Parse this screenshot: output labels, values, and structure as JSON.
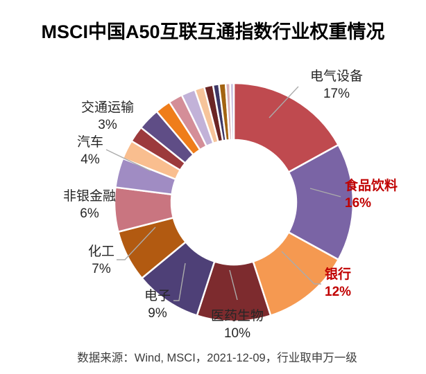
{
  "title": "MSCI中国A50互联互通指数行业权重情况",
  "footer": "数据来源：Wind, MSCI，2021-12-09，行业取申万一级",
  "colors": {
    "emphasis_label": "#C00000",
    "default_label": "#262626",
    "leader_line": "#ABABAB",
    "background": "#FFFFFF"
  },
  "chart_data": {
    "type": "pie",
    "variant": "donut",
    "title": "MSCI中国A50互联互通指数行业权重情况",
    "unit": "%",
    "start_angle_deg": 0,
    "direction": "clockwise",
    "legend": "none",
    "series": [
      {
        "name": "电气设备",
        "value": 17,
        "pct_label": "17%",
        "color": "#BF4A4F",
        "label_color": "#262626",
        "emphasis": false
      },
      {
        "name": "食品饮料",
        "value": 16,
        "pct_label": "16%",
        "color": "#7A64A5",
        "label_color": "#C00000",
        "emphasis": true
      },
      {
        "name": "银行",
        "value": 12,
        "pct_label": "12%",
        "color": "#F59951",
        "label_color": "#C00000",
        "emphasis": true
      },
      {
        "name": "医药生物",
        "value": 10,
        "pct_label": "10%",
        "color": "#7D2B2E",
        "label_color": "#262626",
        "emphasis": false
      },
      {
        "name": "电子",
        "value": 9,
        "pct_label": "9%",
        "color": "#4E4077",
        "label_color": "#262626",
        "emphasis": false
      },
      {
        "name": "化工",
        "value": 7,
        "pct_label": "7%",
        "color": "#B25A11",
        "label_color": "#262626",
        "emphasis": false
      },
      {
        "name": "非银金融",
        "value": 6,
        "pct_label": "6%",
        "color": "#C97580",
        "label_color": "#262626",
        "emphasis": false
      },
      {
        "name": "汽车",
        "value": 4,
        "pct_label": "4%",
        "color": "#A08CC3",
        "label_color": "#262626",
        "emphasis": false
      },
      {
        "name": "",
        "value": 2.6,
        "pct_label": "",
        "color": "#F9BE8F",
        "label_color": null,
        "emphasis": false
      },
      {
        "name": "",
        "value": 2.2,
        "pct_label": "",
        "color": "#9C3A3C",
        "label_color": null,
        "emphasis": false
      },
      {
        "name": "交通运输",
        "value": 3,
        "pct_label": "3%",
        "color": "#5F4D86",
        "label_color": "#262626",
        "emphasis": false
      },
      {
        "name": "",
        "value": 2.1,
        "pct_label": "",
        "color": "#EF7D1A",
        "label_color": null,
        "emphasis": false
      },
      {
        "name": "",
        "value": 1.9,
        "pct_label": "",
        "color": "#D48E98",
        "label_color": null,
        "emphasis": false
      },
      {
        "name": "",
        "value": 1.9,
        "pct_label": "",
        "color": "#C2B2D8",
        "label_color": null,
        "emphasis": false
      },
      {
        "name": "",
        "value": 1.3,
        "pct_label": "",
        "color": "#F6C49A",
        "label_color": null,
        "emphasis": false
      },
      {
        "name": "",
        "value": 1.2,
        "pct_label": "",
        "color": "#6B2524",
        "label_color": null,
        "emphasis": false
      },
      {
        "name": "",
        "value": 0.8,
        "pct_label": "",
        "color": "#3D3766",
        "label_color": null,
        "emphasis": false
      },
      {
        "name": "",
        "value": 0.9,
        "pct_label": "",
        "color": "#A36412",
        "label_color": null,
        "emphasis": false
      },
      {
        "name": "",
        "value": 0.6,
        "pct_label": "",
        "color": "#D8AEB7",
        "label_color": null,
        "emphasis": false
      },
      {
        "name": "",
        "value": 0.5,
        "pct_label": "",
        "color": "#C9C2E0",
        "label_color": null,
        "emphasis": false
      }
    ]
  }
}
